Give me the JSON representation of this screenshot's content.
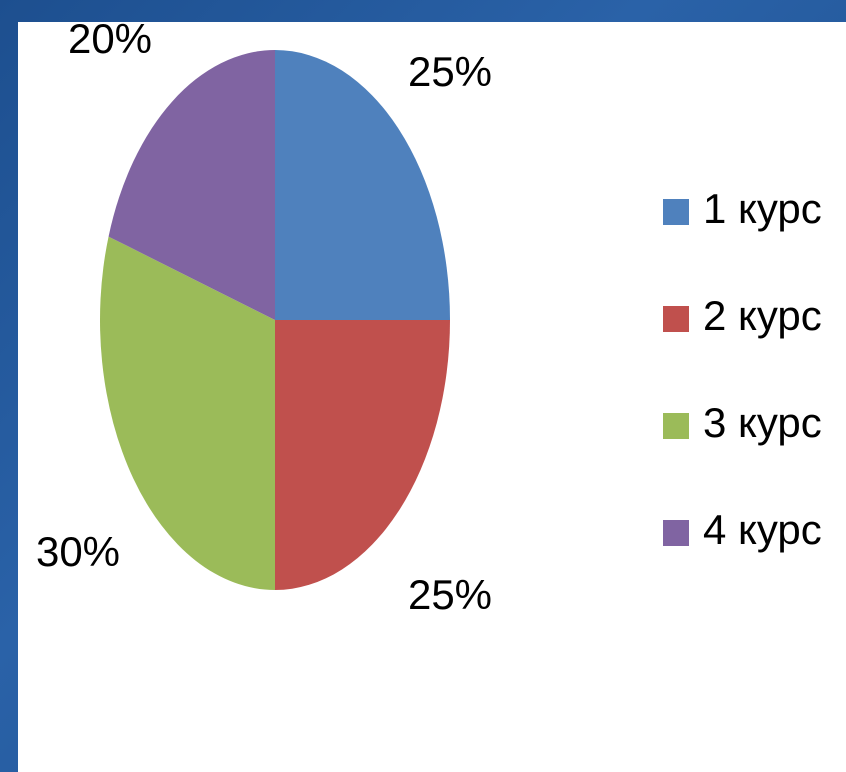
{
  "chart_data": {
    "type": "pie",
    "categories": [
      "1 курс",
      "2 курс",
      "3 курс",
      "4 курс"
    ],
    "values": [
      25,
      25,
      30,
      20
    ],
    "value_labels": [
      "25%",
      "25%",
      "30%",
      "20%"
    ],
    "colors": [
      "#4f81bd",
      "#c0504d",
      "#9bbb59",
      "#8064a2"
    ],
    "legend": "right"
  }
}
